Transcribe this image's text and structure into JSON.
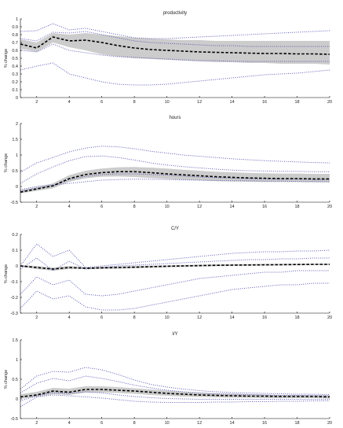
{
  "chart_data": [
    {
      "type": "line",
      "title": "productivity",
      "ylabel": "% change",
      "x": [
        1,
        2,
        3,
        4,
        5,
        6,
        7,
        8,
        9,
        10,
        11,
        12,
        13,
        14,
        15,
        16,
        17,
        18,
        19,
        20
      ],
      "xticks": [
        2,
        4,
        6,
        8,
        10,
        12,
        14,
        16,
        18,
        20
      ],
      "ylim": [
        0,
        1
      ],
      "yticks": [
        0,
        0.1,
        0.2,
        0.3,
        0.4,
        0.5,
        0.6,
        0.7,
        0.8,
        0.9,
        1
      ],
      "ytick_labels": [
        "0",
        "0.1",
        "0.2",
        "0.3",
        "0.4",
        "0.5",
        "0.6",
        "0.7",
        "0.8",
        "0.9",
        "1"
      ],
      "median": [
        0.68,
        0.63,
        0.77,
        0.72,
        0.73,
        0.7,
        0.66,
        0.63,
        0.61,
        0.6,
        0.59,
        0.58,
        0.575,
        0.57,
        0.565,
        0.56,
        0.56,
        0.555,
        0.555,
        0.55
      ],
      "band_low": [
        0.62,
        0.58,
        0.7,
        0.64,
        0.6,
        0.55,
        0.52,
        0.5,
        0.49,
        0.48,
        0.47,
        0.46,
        0.45,
        0.45,
        0.44,
        0.44,
        0.43,
        0.43,
        0.43,
        0.42
      ],
      "band_high": [
        0.74,
        0.7,
        0.82,
        0.8,
        0.82,
        0.8,
        0.78,
        0.76,
        0.75,
        0.74,
        0.73,
        0.73,
        0.72,
        0.72,
        0.72,
        0.72,
        0.72,
        0.72,
        0.72,
        0.72
      ],
      "outer_low": [
        0.35,
        0.4,
        0.44,
        0.3,
        0.25,
        0.2,
        0.17,
        0.16,
        0.16,
        0.17,
        0.19,
        0.21,
        0.23,
        0.25,
        0.27,
        0.29,
        0.3,
        0.31,
        0.33,
        0.35
      ],
      "outer_high": [
        0.84,
        0.85,
        0.94,
        0.86,
        0.88,
        0.84,
        0.8,
        0.76,
        0.75,
        0.75,
        0.76,
        0.77,
        0.78,
        0.79,
        0.8,
        0.81,
        0.82,
        0.83,
        0.84,
        0.85
      ],
      "inner_low": [
        0.6,
        0.58,
        0.68,
        0.6,
        0.57,
        0.54,
        0.52,
        0.51,
        0.5,
        0.49,
        0.48,
        0.47,
        0.47,
        0.46,
        0.46,
        0.46,
        0.46,
        0.46,
        0.46,
        0.46
      ],
      "inner_high": [
        0.75,
        0.72,
        0.83,
        0.82,
        0.84,
        0.8,
        0.76,
        0.72,
        0.7,
        0.69,
        0.68,
        0.67,
        0.66,
        0.66,
        0.65,
        0.65,
        0.65,
        0.65,
        0.65,
        0.65
      ]
    },
    {
      "type": "line",
      "title": "hours",
      "ylabel": "% change",
      "x": [
        1,
        2,
        3,
        4,
        5,
        6,
        7,
        8,
        9,
        10,
        11,
        12,
        13,
        14,
        15,
        16,
        17,
        18,
        19,
        20
      ],
      "xticks": [
        2,
        4,
        6,
        8,
        10,
        12,
        14,
        16,
        18,
        20
      ],
      "ylim": [
        -0.5,
        2
      ],
      "yticks": [
        -0.5,
        0,
        0.5,
        1,
        1.5,
        2
      ],
      "ytick_labels": [
        "-0.5",
        "0",
        "0.5",
        "1",
        "1.5",
        "2"
      ],
      "median": [
        -0.18,
        -0.08,
        0.02,
        0.25,
        0.38,
        0.44,
        0.47,
        0.47,
        0.44,
        0.4,
        0.37,
        0.34,
        0.31,
        0.29,
        0.27,
        0.26,
        0.25,
        0.25,
        0.24,
        0.24
      ],
      "band_low": [
        -0.22,
        -0.14,
        -0.06,
        0.15,
        0.26,
        0.31,
        0.32,
        0.3,
        0.27,
        0.24,
        0.21,
        0.19,
        0.17,
        0.16,
        0.15,
        0.14,
        0.14,
        0.14,
        0.13,
        0.13
      ],
      "band_high": [
        -0.12,
        -0.02,
        0.1,
        0.36,
        0.5,
        0.57,
        0.61,
        0.62,
        0.6,
        0.57,
        0.53,
        0.5,
        0.47,
        0.45,
        0.43,
        0.42,
        0.41,
        0.41,
        0.4,
        0.4
      ],
      "outer_low": [
        -0.1,
        0.0,
        0.05,
        0.1,
        0.15,
        0.2,
        0.22,
        0.23,
        0.23,
        0.22,
        0.21,
        0.2,
        0.19,
        0.18,
        0.18,
        0.17,
        0.17,
        0.16,
        0.16,
        0.15
      ],
      "outer_high": [
        0.45,
        0.75,
        0.92,
        1.1,
        1.22,
        1.28,
        1.26,
        1.2,
        1.12,
        1.06,
        1.0,
        0.96,
        0.92,
        0.88,
        0.85,
        0.82,
        0.8,
        0.78,
        0.76,
        0.75
      ],
      "inner_low": [
        -0.15,
        -0.05,
        0.02,
        0.22,
        0.32,
        0.38,
        0.4,
        0.4,
        0.38,
        0.36,
        0.33,
        0.3,
        0.28,
        0.26,
        0.25,
        0.24,
        0.23,
        0.23,
        0.22,
        0.22
      ],
      "inner_high": [
        0.1,
        0.4,
        0.62,
        0.82,
        0.95,
        0.97,
        0.92,
        0.84,
        0.75,
        0.68,
        0.63,
        0.59,
        0.55,
        0.52,
        0.5,
        0.49,
        0.48,
        0.48,
        0.47,
        0.47
      ]
    },
    {
      "type": "line",
      "title": "C/Y",
      "ylabel": "% change",
      "x": [
        1,
        2,
        3,
        4,
        5,
        6,
        7,
        8,
        9,
        10,
        11,
        12,
        13,
        14,
        15,
        16,
        17,
        18,
        19,
        20
      ],
      "xticks": [
        2,
        4,
        6,
        8,
        10,
        12,
        14,
        16,
        18,
        20
      ],
      "ylim": [
        -0.3,
        0.2
      ],
      "yticks": [
        -0.3,
        -0.2,
        -0.1,
        0,
        0.1,
        0.2
      ],
      "ytick_labels": [
        "-0.3",
        "-0.2",
        "-0.1",
        "0",
        "0.1",
        "0.2"
      ],
      "median": [
        0.0,
        -0.01,
        -0.02,
        -0.01,
        -0.015,
        -0.012,
        -0.01,
        -0.008,
        -0.005,
        -0.002,
        0.0,
        0.002,
        0.004,
        0.005,
        0.006,
        0.007,
        0.008,
        0.009,
        0.01,
        0.01
      ],
      "band_low": [
        -0.005,
        -0.02,
        -0.03,
        -0.02,
        -0.02,
        -0.02,
        -0.018,
        -0.015,
        -0.012,
        -0.009,
        -0.006,
        -0.004,
        -0.002,
        0.0,
        0.001,
        0.002,
        0.003,
        0.004,
        0.005,
        0.005
      ],
      "band_high": [
        0.005,
        0.0,
        -0.01,
        0.0,
        -0.008,
        -0.005,
        -0.003,
        0.0,
        0.002,
        0.004,
        0.006,
        0.008,
        0.01,
        0.011,
        0.012,
        0.013,
        0.013,
        0.014,
        0.014,
        0.015
      ],
      "outer_low": [
        -0.27,
        -0.16,
        -0.21,
        -0.19,
        -0.26,
        -0.28,
        -0.28,
        -0.27,
        -0.25,
        -0.23,
        -0.21,
        -0.19,
        -0.17,
        -0.15,
        -0.14,
        -0.13,
        -0.12,
        -0.12,
        -0.11,
        -0.11
      ],
      "outer_high": [
        0.0,
        0.14,
        0.06,
        0.1,
        -0.01,
        0.0,
        0.01,
        0.02,
        0.03,
        0.04,
        0.05,
        0.06,
        0.07,
        0.08,
        0.085,
        0.09,
        0.09,
        0.095,
        0.095,
        0.1
      ],
      "inner_low": [
        -0.18,
        -0.07,
        -0.12,
        -0.09,
        -0.18,
        -0.19,
        -0.18,
        -0.16,
        -0.14,
        -0.12,
        -0.1,
        -0.08,
        -0.07,
        -0.06,
        -0.05,
        -0.04,
        -0.04,
        -0.03,
        -0.03,
        -0.03
      ],
      "inner_high": [
        -0.02,
        0.05,
        -0.03,
        0.03,
        -0.02,
        -0.01,
        0.0,
        0.005,
        0.01,
        0.015,
        0.02,
        0.025,
        0.03,
        0.035,
        0.04,
        0.04,
        0.045,
        0.045,
        0.05,
        0.05
      ]
    },
    {
      "type": "line",
      "title": "I/Y",
      "ylabel": "% change",
      "x": [
        1,
        2,
        3,
        4,
        5,
        6,
        7,
        8,
        9,
        10,
        11,
        12,
        13,
        14,
        15,
        16,
        17,
        18,
        19,
        20
      ],
      "xticks": [
        2,
        4,
        6,
        8,
        10,
        12,
        14,
        16,
        18,
        20
      ],
      "ylim": [
        -0.5,
        1.5
      ],
      "yticks": [
        -0.5,
        0,
        0.5,
        1,
        1.5
      ],
      "ytick_labels": [
        "-0.5",
        "0",
        "0.5",
        "1",
        "1.5"
      ],
      "median": [
        0.05,
        0.1,
        0.2,
        0.17,
        0.24,
        0.24,
        0.22,
        0.2,
        0.17,
        0.14,
        0.12,
        0.1,
        0.09,
        0.08,
        0.07,
        0.07,
        0.06,
        0.06,
        0.06,
        0.05
      ],
      "band_low": [
        0.0,
        0.05,
        0.12,
        0.1,
        0.16,
        0.16,
        0.15,
        0.13,
        0.1,
        0.08,
        0.06,
        0.05,
        0.04,
        0.03,
        0.03,
        0.02,
        0.02,
        0.02,
        0.02,
        0.01
      ],
      "band_high": [
        0.12,
        0.18,
        0.28,
        0.26,
        0.32,
        0.32,
        0.3,
        0.27,
        0.24,
        0.21,
        0.18,
        0.16,
        0.14,
        0.13,
        0.12,
        0.11,
        0.1,
        0.1,
        0.09,
        0.09
      ],
      "outer_low": [
        -0.2,
        0.05,
        0.1,
        0.08,
        0.05,
        0.02,
        -0.02,
        -0.06,
        -0.08,
        -0.09,
        -0.09,
        -0.09,
        -0.08,
        -0.08,
        -0.07,
        -0.07,
        -0.06,
        -0.06,
        -0.05,
        -0.05
      ],
      "outer_high": [
        0.25,
        0.58,
        0.7,
        0.68,
        0.8,
        0.74,
        0.62,
        0.48,
        0.37,
        0.3,
        0.25,
        0.21,
        0.18,
        0.16,
        0.15,
        0.14,
        0.13,
        0.12,
        0.12,
        0.11
      ],
      "inner_low": [
        -0.05,
        0.08,
        0.16,
        0.14,
        0.18,
        0.15,
        0.1,
        0.06,
        0.03,
        0.01,
        0.0,
        -0.01,
        -0.01,
        -0.01,
        -0.01,
        -0.01,
        -0.01,
        -0.01,
        -0.01,
        -0.01
      ],
      "inner_high": [
        0.15,
        0.4,
        0.52,
        0.46,
        0.58,
        0.52,
        0.44,
        0.35,
        0.28,
        0.22,
        0.18,
        0.15,
        0.13,
        0.12,
        0.11,
        0.1,
        0.09,
        0.09,
        0.09,
        0.08
      ]
    }
  ]
}
